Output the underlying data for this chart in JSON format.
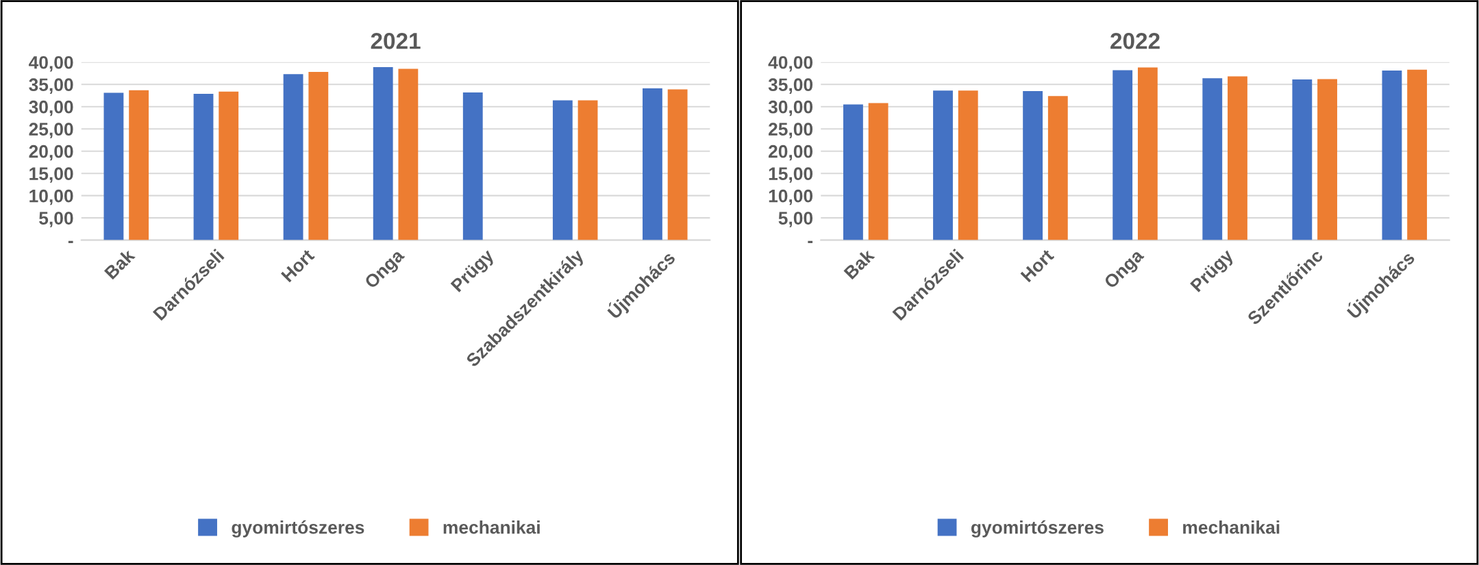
{
  "chart_data": [
    {
      "type": "bar",
      "title": "2021",
      "categories": [
        "Bak",
        "Darnózseli",
        "Hort",
        "Onga",
        "Prügy",
        "Szabadszentkirály",
        "Újmohács"
      ],
      "series": [
        {
          "name": "gyomirtószeres",
          "color": "#4472c4",
          "values": [
            33.1,
            32.9,
            37.3,
            38.9,
            33.2,
            31.4,
            34.1
          ]
        },
        {
          "name": "mechanikai",
          "color": "#ed7d31",
          "values": [
            33.7,
            33.4,
            37.8,
            38.5,
            null,
            31.4,
            33.9
          ]
        }
      ],
      "ylim": [
        0,
        40
      ],
      "yticks": [
        {
          "value": 0,
          "label": "-"
        },
        {
          "value": 5,
          "label": "5,00"
        },
        {
          "value": 10,
          "label": "10,00"
        },
        {
          "value": 15,
          "label": "15,00"
        },
        {
          "value": 20,
          "label": "20,00"
        },
        {
          "value": 25,
          "label": "25,00"
        },
        {
          "value": 30,
          "label": "30,00"
        },
        {
          "value": 35,
          "label": "35,00"
        },
        {
          "value": 40,
          "label": "40,00"
        }
      ],
      "grid": "y",
      "legend": "bottom"
    },
    {
      "type": "bar",
      "title": "2022",
      "categories": [
        "Bak",
        "Darnózseli",
        "Hort",
        "Onga",
        "Prügy",
        "Szentlőrinc",
        "Újmohács"
      ],
      "series": [
        {
          "name": "gyomirtószeres",
          "color": "#4472c4",
          "values": [
            30.5,
            33.6,
            33.5,
            38.2,
            36.4,
            36.1,
            38.1
          ]
        },
        {
          "name": "mechanikai",
          "color": "#ed7d31",
          "values": [
            30.8,
            33.6,
            32.4,
            38.8,
            36.8,
            36.2,
            38.3
          ]
        }
      ],
      "ylim": [
        0,
        40
      ],
      "yticks": [
        {
          "value": 0,
          "label": "-"
        },
        {
          "value": 5,
          "label": "5,00"
        },
        {
          "value": 10,
          "label": "10,00"
        },
        {
          "value": 15,
          "label": "15,00"
        },
        {
          "value": 20,
          "label": "20,00"
        },
        {
          "value": 25,
          "label": "25,00"
        },
        {
          "value": 30,
          "label": "30,00"
        },
        {
          "value": 35,
          "label": "35,00"
        },
        {
          "value": 40,
          "label": "40,00"
        }
      ],
      "grid": "y",
      "legend": "bottom"
    }
  ]
}
